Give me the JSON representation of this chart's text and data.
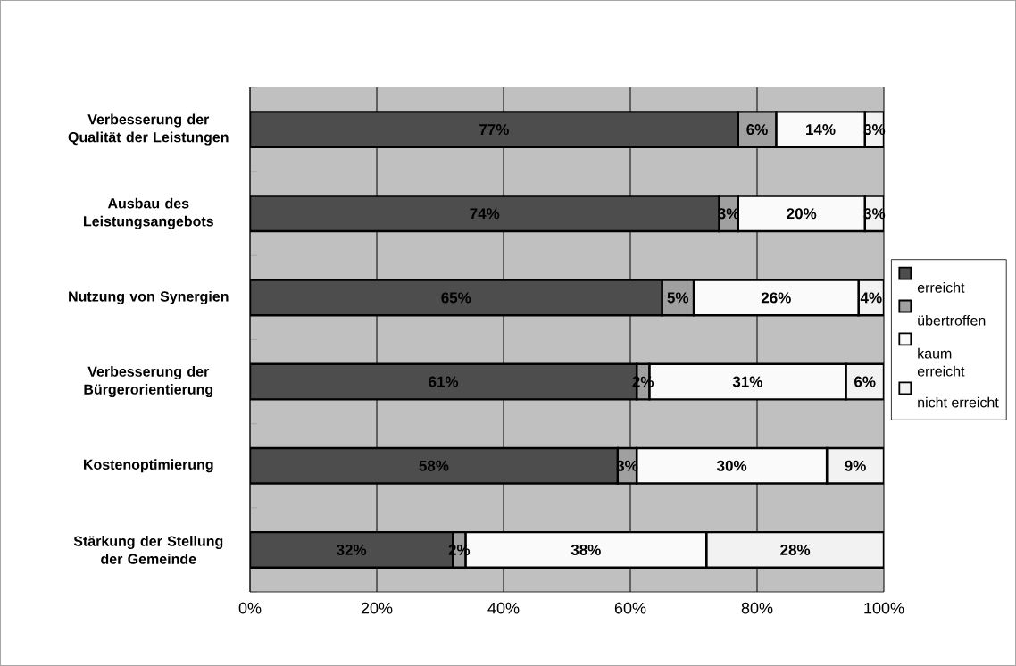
{
  "chart_data": {
    "type": "bar",
    "orientation": "horizontal",
    "stacked": true,
    "categories": [
      "Verbesserung der Qualität der Leistungen",
      "Ausbau des Leistungsangebots",
      "Nutzung von Synergien",
      "Verbesserung der Bürgerorientierung",
      "Kostenoptimierung",
      "Stärkung der Stellung der Gemeinde"
    ],
    "series": [
      {
        "name": "erreicht",
        "color": "#4d4d4d",
        "values": [
          77,
          74,
          65,
          61,
          58,
          32
        ],
        "value_labels": [
          "77%",
          "74%",
          "65%",
          "61%",
          "58%",
          "32%"
        ]
      },
      {
        "name": "übertroffen",
        "color": "#a0a0a0",
        "values": [
          6,
          3,
          5,
          2,
          3,
          2
        ],
        "value_labels": [
          "6%",
          "3%",
          "5%",
          "2%",
          "3%",
          "2%"
        ]
      },
      {
        "name": "kaum erreicht",
        "color": "#fafafa",
        "values": [
          14,
          20,
          26,
          31,
          30,
          38
        ],
        "value_labels": [
          "14%",
          "20%",
          "26%",
          "31%",
          "30%",
          "38%"
        ]
      },
      {
        "name": "nicht erreicht",
        "color": "#f2f2f2",
        "values": [
          3,
          3,
          4,
          6,
          9,
          28
        ],
        "value_labels": [
          "3%",
          "3%",
          "4%",
          "6%",
          "9%",
          "28%"
        ]
      }
    ],
    "xlim": [
      0,
      100
    ],
    "xticks": [
      {
        "value": 0,
        "label": "0%"
      },
      {
        "value": 20,
        "label": "20%"
      },
      {
        "value": 40,
        "label": "40%"
      },
      {
        "value": 60,
        "label": "60%"
      },
      {
        "value": 80,
        "label": "80%"
      },
      {
        "value": 100,
        "label": "100%"
      }
    ],
    "grid": "x",
    "legend": "right"
  }
}
